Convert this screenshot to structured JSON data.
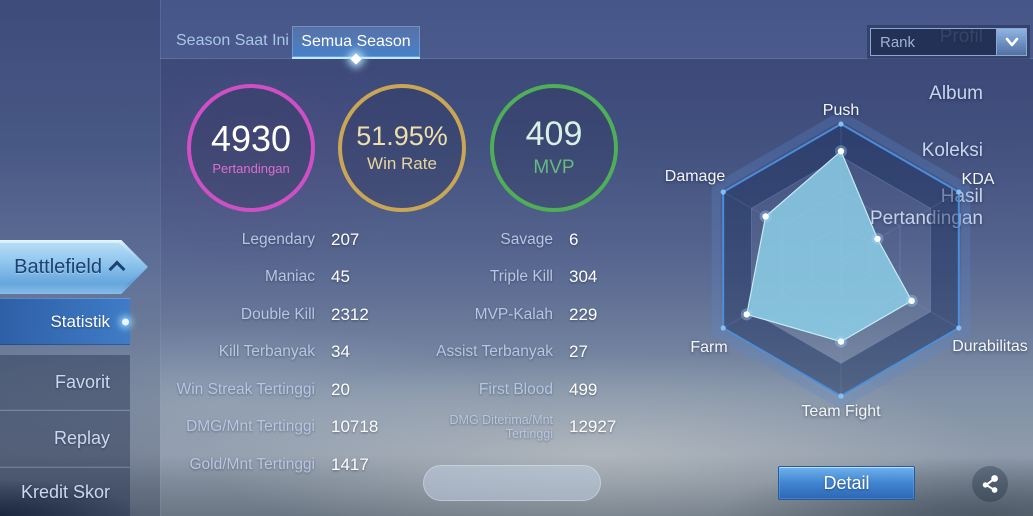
{
  "sidebar": {
    "items": [
      {
        "label": "Profil"
      },
      {
        "label": "Album"
      },
      {
        "label": "Koleksi"
      },
      {
        "label": "Hasil Pertandingan"
      },
      {
        "label": "Battlefield"
      },
      {
        "label": "Statistik"
      },
      {
        "label": "Favorit"
      },
      {
        "label": "Replay"
      },
      {
        "label": "Kredit Skor"
      }
    ]
  },
  "tabs": {
    "season_current": "Season Saat Ini",
    "all_seasons": "Semua Season"
  },
  "rank_dropdown": {
    "selected": "Rank"
  },
  "summary": {
    "matches": {
      "value": "4930",
      "label": "Pertandingan",
      "ring_color": "#cf4fc4"
    },
    "win_rate": {
      "value": "51.95%",
      "label": "Win Rate",
      "ring_color": "#c9a656"
    },
    "mvp": {
      "value": "409",
      "label": "MVP",
      "ring_color": "#4fae58"
    }
  },
  "stats_left": [
    {
      "label": "Legendary",
      "value": "207"
    },
    {
      "label": "Maniac",
      "value": "45"
    },
    {
      "label": "Double Kill",
      "value": "2312"
    },
    {
      "label": "Kill Terbanyak",
      "value": "34"
    },
    {
      "label": "Win Streak Tertinggi",
      "value": "20"
    },
    {
      "label": "DMG/Mnt Tertinggi",
      "value": "10718"
    },
    {
      "label": "Gold/Mnt Tertinggi",
      "value": "1417"
    }
  ],
  "stats_right": [
    {
      "label": "Savage",
      "value": "6"
    },
    {
      "label": "Triple Kill",
      "value": "304"
    },
    {
      "label": "MVP-Kalah",
      "value": "229"
    },
    {
      "label": "Assist Terbanyak",
      "value": "27"
    },
    {
      "label": "First Blood",
      "value": "499"
    },
    {
      "label": "DMG Diterima/Mnt Tertinggi",
      "value": "12927"
    }
  ],
  "chart_data": {
    "type": "radar",
    "categories": [
      "Push",
      "KDA",
      "Durabilitas",
      "Team Fight",
      "Farm",
      "Damage"
    ],
    "values": [
      0.8,
      0.31,
      0.6,
      0.6,
      0.8,
      0.64
    ],
    "max": 1,
    "grid_levels": [
      1,
      0.76,
      0.5,
      0.25
    ],
    "legend": "none",
    "fill_color": "rgba(142,210,234,0.82)",
    "fill_stroke": "#c5ecf6",
    "band_color": "rgba(25,45,90,0.45)",
    "outer_line_color": "#4a90e0",
    "grid_line_color": "rgba(125,160,220,0.45)",
    "dot_color": "#ffffff"
  },
  "footer": {
    "detail_label": "Detail"
  }
}
